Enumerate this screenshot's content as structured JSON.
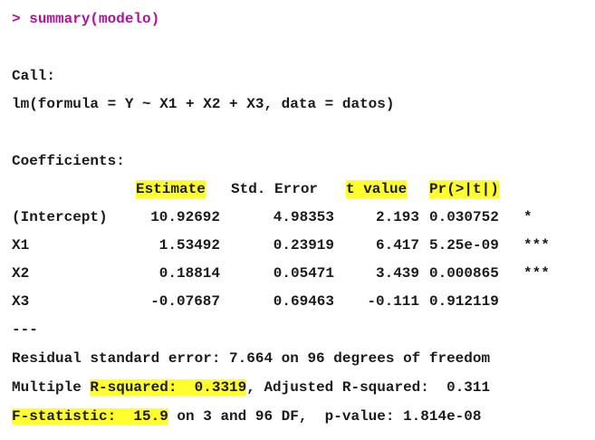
{
  "command": {
    "prompt": ">",
    "text": "summary(modelo)"
  },
  "call": {
    "label": "Call:",
    "formula": "lm(formula = Y ~ X1 + X2 + X3, data = datos)"
  },
  "coefficients": {
    "label": "Coefficients:",
    "headers": {
      "estimate": "Estimate",
      "std_error": "Std. Error",
      "t_value": "t value",
      "p_value": "Pr(>|t|)"
    },
    "rows": [
      {
        "term": "(Intercept)",
        "estimate": "10.92692",
        "std_error": "4.98353",
        "t_value": "2.193",
        "p_value": "0.030752",
        "signif": "*"
      },
      {
        "term": "X1",
        "estimate": "1.53492",
        "std_error": "0.23919",
        "t_value": "6.417",
        "p_value": "5.25e-09",
        "signif": "***"
      },
      {
        "term": "X2",
        "estimate": "0.18814",
        "std_error": "0.05471",
        "t_value": "3.439",
        "p_value": "0.000865",
        "signif": "***"
      },
      {
        "term": "X3",
        "estimate": "-0.07687",
        "std_error": "0.69463",
        "t_value": "-0.111",
        "p_value": "0.912119",
        "signif": ""
      }
    ]
  },
  "separator": "---",
  "residual_se": "Residual standard error: 7.664 on 96 degrees of freedom",
  "r_squared": {
    "prefix": "Multiple",
    "multiple": "R-squared:  0.3319",
    "adjusted": ", Adjusted R-squared:  0.311"
  },
  "f_statistic": {
    "value": "F-statistic:  15.9",
    "rest": " on 3 and 96 DF,  p-value: 1.814e-08"
  },
  "colors": {
    "prompt": "#b0129e",
    "highlight": "#ffff2e",
    "text": "#1a1a1a"
  }
}
